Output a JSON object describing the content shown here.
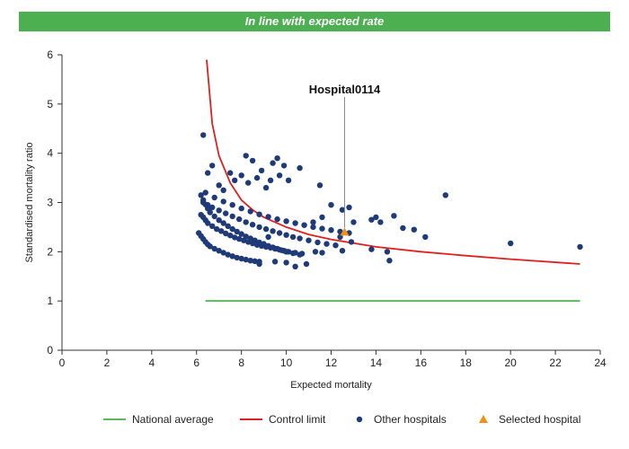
{
  "banner": {
    "text": "In line with expected rate"
  },
  "chart_data": {
    "type": "scatter",
    "title": "",
    "xlabel": "Expected mortality",
    "ylabel": "Standardised mortality ratio",
    "xlim": [
      0,
      24
    ],
    "ylim": [
      0,
      6
    ],
    "xticks": [
      "0",
      "2",
      "4",
      "6",
      "8",
      "10",
      "12",
      "14",
      "16",
      "18",
      "20",
      "22",
      "24"
    ],
    "yticks": [
      "0",
      "1",
      "2",
      "3",
      "4",
      "5",
      "6"
    ],
    "grid": false,
    "legend_position": "bottom",
    "colors": {
      "national": "#5cb85c",
      "control": "#e02020",
      "hospitals": "#1f3a78",
      "selected": "#f0901a"
    },
    "annotation": {
      "text": "Hospital0114",
      "x": 12.6,
      "y": 2.4
    },
    "series": [
      {
        "name": "National average",
        "kind": "line",
        "x": [
          6.4,
          23.1
        ],
        "y": [
          1,
          1
        ]
      },
      {
        "name": "Control limit",
        "kind": "line",
        "x": [
          6.45,
          6.7,
          7.0,
          7.5,
          8.0,
          8.5,
          9.0,
          10.0,
          11.0,
          12.0,
          14.0,
          16.0,
          18.0,
          20.0,
          23.1
        ],
        "y": [
          5.9,
          4.6,
          3.95,
          3.4,
          3.05,
          2.85,
          2.7,
          2.5,
          2.35,
          2.25,
          2.1,
          2.0,
          1.92,
          1.85,
          1.75
        ]
      },
      {
        "name": "Other hospitals",
        "kind": "scatter",
        "x": [
          6.1,
          6.2,
          6.3,
          6.4,
          6.5,
          6.6,
          6.8,
          7.0,
          7.2,
          7.4,
          7.6,
          7.8,
          8.0,
          8.2,
          8.4,
          8.6,
          8.8,
          6.2,
          6.3,
          6.4,
          6.5,
          6.6,
          6.8,
          7.0,
          7.2,
          7.4,
          7.6,
          7.8,
          8.0,
          8.2,
          8.4,
          8.6,
          8.8,
          9.0,
          9.2,
          9.4,
          9.6,
          9.8,
          10.0,
          10.3,
          10.6,
          6.2,
          6.3,
          6.4,
          6.5,
          6.7,
          6.9,
          7.1,
          7.3,
          7.5,
          7.7,
          7.9,
          8.1,
          8.3,
          8.5,
          8.7,
          8.9,
          9.1,
          9.3,
          9.5,
          9.7,
          9.9,
          10.1,
          10.4,
          10.7,
          6.3,
          6.5,
          6.7,
          7.0,
          7.3,
          7.6,
          7.9,
          8.2,
          8.5,
          8.8,
          9.1,
          9.4,
          9.7,
          10.0,
          10.3,
          10.6,
          11.0,
          11.4,
          11.8,
          12.2,
          6.4,
          6.8,
          7.2,
          7.6,
          8.0,
          8.4,
          8.8,
          9.2,
          9.6,
          10.0,
          10.4,
          10.8,
          11.2,
          11.6,
          12.0,
          12.4,
          12.8,
          6.3,
          6.5,
          6.7,
          7.0,
          7.2,
          7.5,
          7.7,
          8.0,
          8.2,
          8.3,
          8.5,
          8.7,
          8.9,
          9.1,
          9.3,
          9.4,
          9.6,
          9.7,
          9.9,
          10.1,
          10.6,
          11.5,
          12.0,
          12.5,
          12.8,
          11.2,
          11.6,
          12.4,
          12.9,
          13.0,
          13.8,
          14.0,
          14.2,
          14.8,
          15.2,
          15.7,
          16.2,
          17.1,
          20.0,
          23.1,
          8.8,
          9.2,
          9.5,
          10.0,
          10.4,
          10.9,
          11.3,
          11.6,
          12.5,
          13.8,
          14.5,
          14.6
        ],
        "y": [
          2.38,
          2.32,
          2.26,
          2.2,
          2.15,
          2.11,
          2.06,
          2.02,
          1.98,
          1.94,
          1.91,
          1.88,
          1.86,
          1.84,
          1.82,
          1.81,
          1.8,
          3.15,
          3.05,
          2.96,
          2.88,
          2.8,
          2.72,
          2.64,
          2.58,
          2.52,
          2.46,
          2.41,
          2.36,
          2.31,
          2.27,
          2.23,
          2.19,
          2.16,
          2.12,
          2.09,
          2.06,
          2.03,
          2.0,
          1.97,
          1.94,
          2.75,
          2.7,
          2.64,
          2.58,
          2.52,
          2.46,
          2.42,
          2.37,
          2.33,
          2.29,
          2.26,
          2.23,
          2.2,
          2.17,
          2.14,
          2.12,
          2.1,
          2.08,
          2.06,
          2.04,
          2.02,
          2.0,
          1.98,
          1.96,
          3.0,
          2.95,
          2.9,
          2.84,
          2.78,
          2.72,
          2.66,
          2.6,
          2.55,
          2.5,
          2.46,
          2.42,
          2.38,
          2.34,
          2.3,
          2.27,
          2.23,
          2.19,
          2.16,
          2.13,
          3.2,
          3.1,
          3.02,
          2.95,
          2.88,
          2.82,
          2.76,
          2.71,
          2.66,
          2.62,
          2.58,
          2.54,
          2.5,
          2.47,
          2.44,
          2.41,
          2.38,
          4.37,
          3.6,
          3.75,
          3.35,
          3.25,
          3.6,
          3.45,
          3.55,
          3.95,
          3.4,
          3.85,
          3.5,
          3.65,
          3.3,
          3.45,
          3.8,
          3.9,
          3.55,
          3.75,
          3.45,
          3.7,
          3.35,
          2.95,
          2.85,
          2.9,
          2.6,
          2.7,
          2.3,
          2.2,
          2.6,
          2.65,
          2.7,
          2.6,
          2.73,
          2.48,
          2.45,
          2.3,
          3.15,
          2.17,
          2.1,
          1.75,
          2.3,
          1.8,
          1.78,
          1.7,
          1.75,
          2.0,
          1.98,
          2.02,
          2.05,
          2.0,
          1.82
        ]
      },
      {
        "name": "Selected hospital",
        "kind": "scatter",
        "x": [
          12.6
        ],
        "y": [
          2.4
        ]
      }
    ]
  }
}
